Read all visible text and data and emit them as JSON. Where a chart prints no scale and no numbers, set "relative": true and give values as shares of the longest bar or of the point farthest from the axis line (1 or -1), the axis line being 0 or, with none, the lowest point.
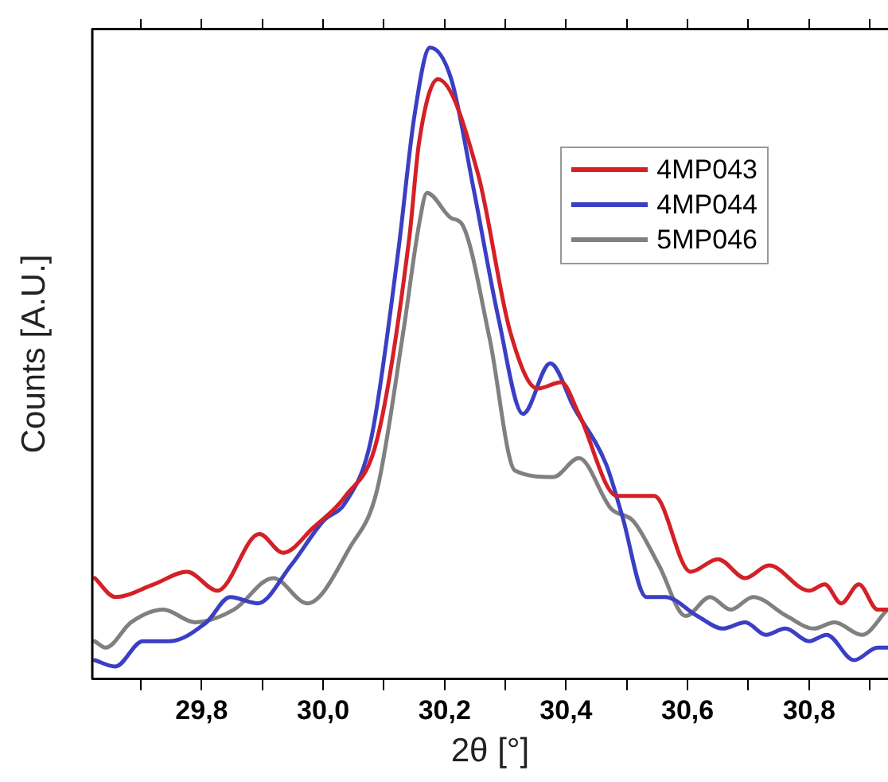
{
  "chart_data": {
    "type": "line",
    "xlabel": "2θ [°]",
    "ylabel": "Counts [A.U.]",
    "relative": true,
    "xlim": [
      29.62,
      30.93
    ],
    "xticks": [
      {
        "value": 29.7,
        "label": null
      },
      {
        "value": 29.8,
        "label": "29,8"
      },
      {
        "value": 29.9,
        "label": null
      },
      {
        "value": 30.0,
        "label": "30,0"
      },
      {
        "value": 30.1,
        "label": null
      },
      {
        "value": 30.2,
        "label": "30,2"
      },
      {
        "value": 30.3,
        "label": null
      },
      {
        "value": 30.4,
        "label": "30,4"
      },
      {
        "value": 30.5,
        "label": null
      },
      {
        "value": 30.6,
        "label": "30,6"
      },
      {
        "value": 30.7,
        "label": null
      },
      {
        "value": 30.8,
        "label": "30,8"
      },
      {
        "value": 30.9,
        "label": null
      }
    ],
    "grid": false,
    "legend": "top right",
    "marker": "none",
    "line_style": "solid",
    "series": [
      {
        "name": "4MP043",
        "color": "#d42026",
        "x": [
          29.624,
          29.658,
          29.721,
          29.776,
          29.826,
          29.895,
          29.934,
          29.984,
          30.037,
          30.089,
          30.142,
          30.158,
          30.189,
          30.255,
          30.308,
          30.353,
          30.392,
          30.421,
          30.484,
          30.545,
          30.605,
          30.65,
          30.695,
          30.734,
          30.8,
          30.826,
          30.853,
          30.882,
          30.913,
          30.929
        ],
        "values": [
          0.16,
          0.13,
          0.15,
          0.17,
          0.14,
          0.23,
          0.2,
          0.24,
          0.29,
          0.38,
          0.7,
          0.85,
          0.95,
          0.8,
          0.55,
          0.46,
          0.47,
          0.42,
          0.29,
          0.29,
          0.17,
          0.19,
          0.16,
          0.18,
          0.14,
          0.15,
          0.12,
          0.15,
          0.11,
          0.11
        ]
      },
      {
        "name": "4MP044",
        "color": "#3a3fc4",
        "x": [
          29.624,
          29.658,
          29.703,
          29.747,
          29.808,
          29.847,
          29.892,
          29.947,
          30.0,
          30.037,
          30.079,
          30.124,
          30.15,
          30.176,
          30.211,
          30.247,
          30.289,
          30.329,
          30.374,
          30.413,
          30.466,
          30.492,
          30.532,
          30.563,
          30.616,
          30.658,
          30.695,
          30.729,
          30.761,
          30.8,
          30.829,
          30.874,
          30.913,
          30.929
        ],
        "values": [
          0.03,
          0.02,
          0.06,
          0.06,
          0.09,
          0.13,
          0.12,
          0.18,
          0.25,
          0.28,
          0.38,
          0.68,
          0.89,
          1,
          0.95,
          0.78,
          0.57,
          0.42,
          0.5,
          0.43,
          0.34,
          0.26,
          0.13,
          0.13,
          0.1,
          0.08,
          0.09,
          0.07,
          0.08,
          0.06,
          0.07,
          0.03,
          0.05,
          0.05
        ]
      },
      {
        "name": "5MP046",
        "color": "#808080",
        "x": [
          29.624,
          29.642,
          29.684,
          29.737,
          29.789,
          29.853,
          29.918,
          29.974,
          30.045,
          30.089,
          30.132,
          30.158,
          30.171,
          30.211,
          30.229,
          30.274,
          30.316,
          30.379,
          30.421,
          30.474,
          30.511,
          30.553,
          30.597,
          30.637,
          30.671,
          30.708,
          30.763,
          30.808,
          30.842,
          30.887,
          30.929
        ],
        "values": [
          0.06,
          0.05,
          0.09,
          0.11,
          0.09,
          0.11,
          0.16,
          0.12,
          0.21,
          0.3,
          0.55,
          0.72,
          0.77,
          0.73,
          0.72,
          0.54,
          0.33,
          0.32,
          0.35,
          0.27,
          0.25,
          0.18,
          0.1,
          0.13,
          0.11,
          0.13,
          0.1,
          0.08,
          0.09,
          0.07,
          0.11
        ]
      }
    ]
  }
}
